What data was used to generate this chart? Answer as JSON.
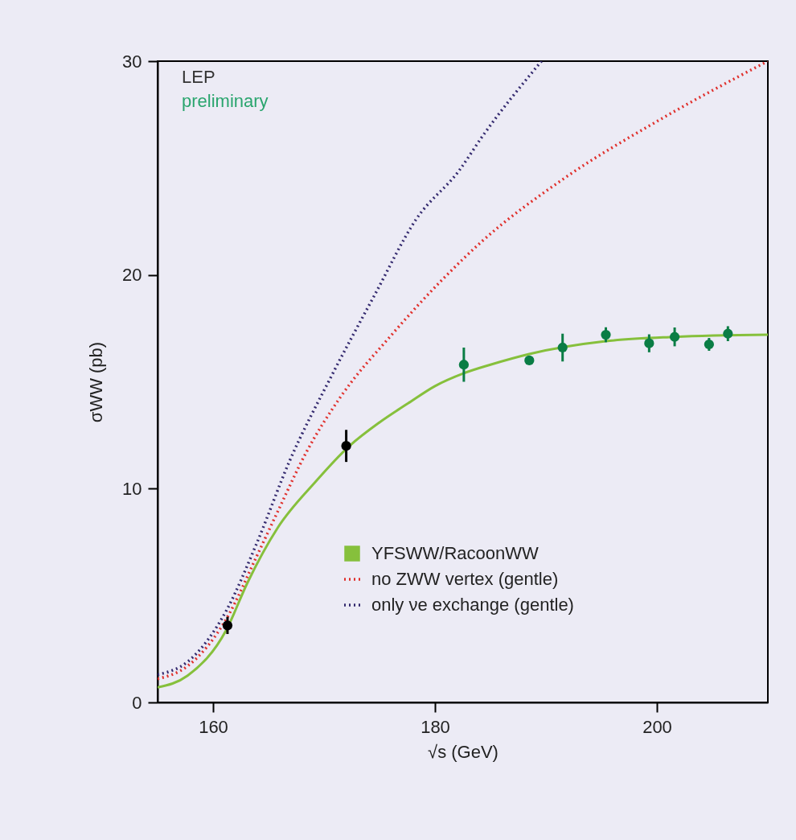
{
  "chart_data": {
    "type": "line",
    "xlabel": "√s (GeV)",
    "ylabel": "σWW (pb)",
    "xlim": [
      155,
      210
    ],
    "ylim": [
      0,
      30
    ],
    "xticks": [
      160,
      180,
      200
    ],
    "yticks": [
      0,
      10,
      20,
      30
    ],
    "grid": false,
    "legend": "bottom right",
    "annotations": [
      "LEP",
      "preliminary"
    ],
    "series": [
      {
        "type": "line",
        "name": "YFSWW/RacoonWW",
        "color": "#86c03c",
        "line_style": "solid",
        "x": [
          155,
          157.7,
          161.2,
          163.1,
          165.8,
          169.2,
          172.3,
          175,
          177.6,
          180,
          182.6,
          185,
          188.5,
          195.4,
          201.6,
          210
        ],
        "values": [
          0.7,
          1.25,
          3.4,
          5.6,
          8.15,
          10.3,
          12.0,
          13.1,
          14.0,
          14.8,
          15.4,
          15.8,
          16.3,
          16.9,
          17.1,
          17.2
        ]
      },
      {
        "type": "line",
        "name": "no ZWW vertex (gentle)",
        "color": "#e0302c",
        "line_style": "dotted",
        "x": [
          155,
          157.7,
          161.3,
          163.9,
          165.8,
          168.4,
          171.5,
          176.1,
          180.7,
          184.3,
          191.6,
          200.4,
          210
        ],
        "values": [
          1.1,
          1.7,
          4.0,
          6.8,
          8.9,
          11.7,
          14.3,
          17.2,
          19.8,
          21.6,
          24.5,
          27.3,
          30.0
        ]
      },
      {
        "type": "line",
        "name": "only νe exchange (gentle)",
        "color": "#33296e",
        "line_style": "dotted",
        "x": [
          155,
          157.7,
          161.2,
          163.9,
          166.9,
          170.7,
          174.5,
          178.3,
          182.2,
          184.3,
          189.6
        ],
        "values": [
          1.3,
          1.9,
          4.3,
          7.4,
          11.3,
          15.3,
          19.0,
          22.6,
          24.9,
          26.5,
          30.0
        ]
      },
      {
        "type": "scatter",
        "color": "#000000",
        "marker": "circle",
        "x": [
          161.3,
          172.0
        ],
        "values": [
          3.6,
          12.0
        ],
        "errors": [
          0.4,
          0.75
        ]
      },
      {
        "type": "scatter",
        "color": "#0a7d45",
        "marker": "circle",
        "x": [
          182.6,
          188.5,
          191.5,
          195.4,
          199.3,
          201.6,
          204.7,
          206.4
        ],
        "values": [
          15.8,
          16.0,
          16.6,
          17.2,
          16.8,
          17.1,
          16.75,
          17.25
        ],
        "errors": [
          0.8,
          0.15,
          0.65,
          0.35,
          0.42,
          0.44,
          0.3,
          0.35
        ]
      }
    ]
  }
}
